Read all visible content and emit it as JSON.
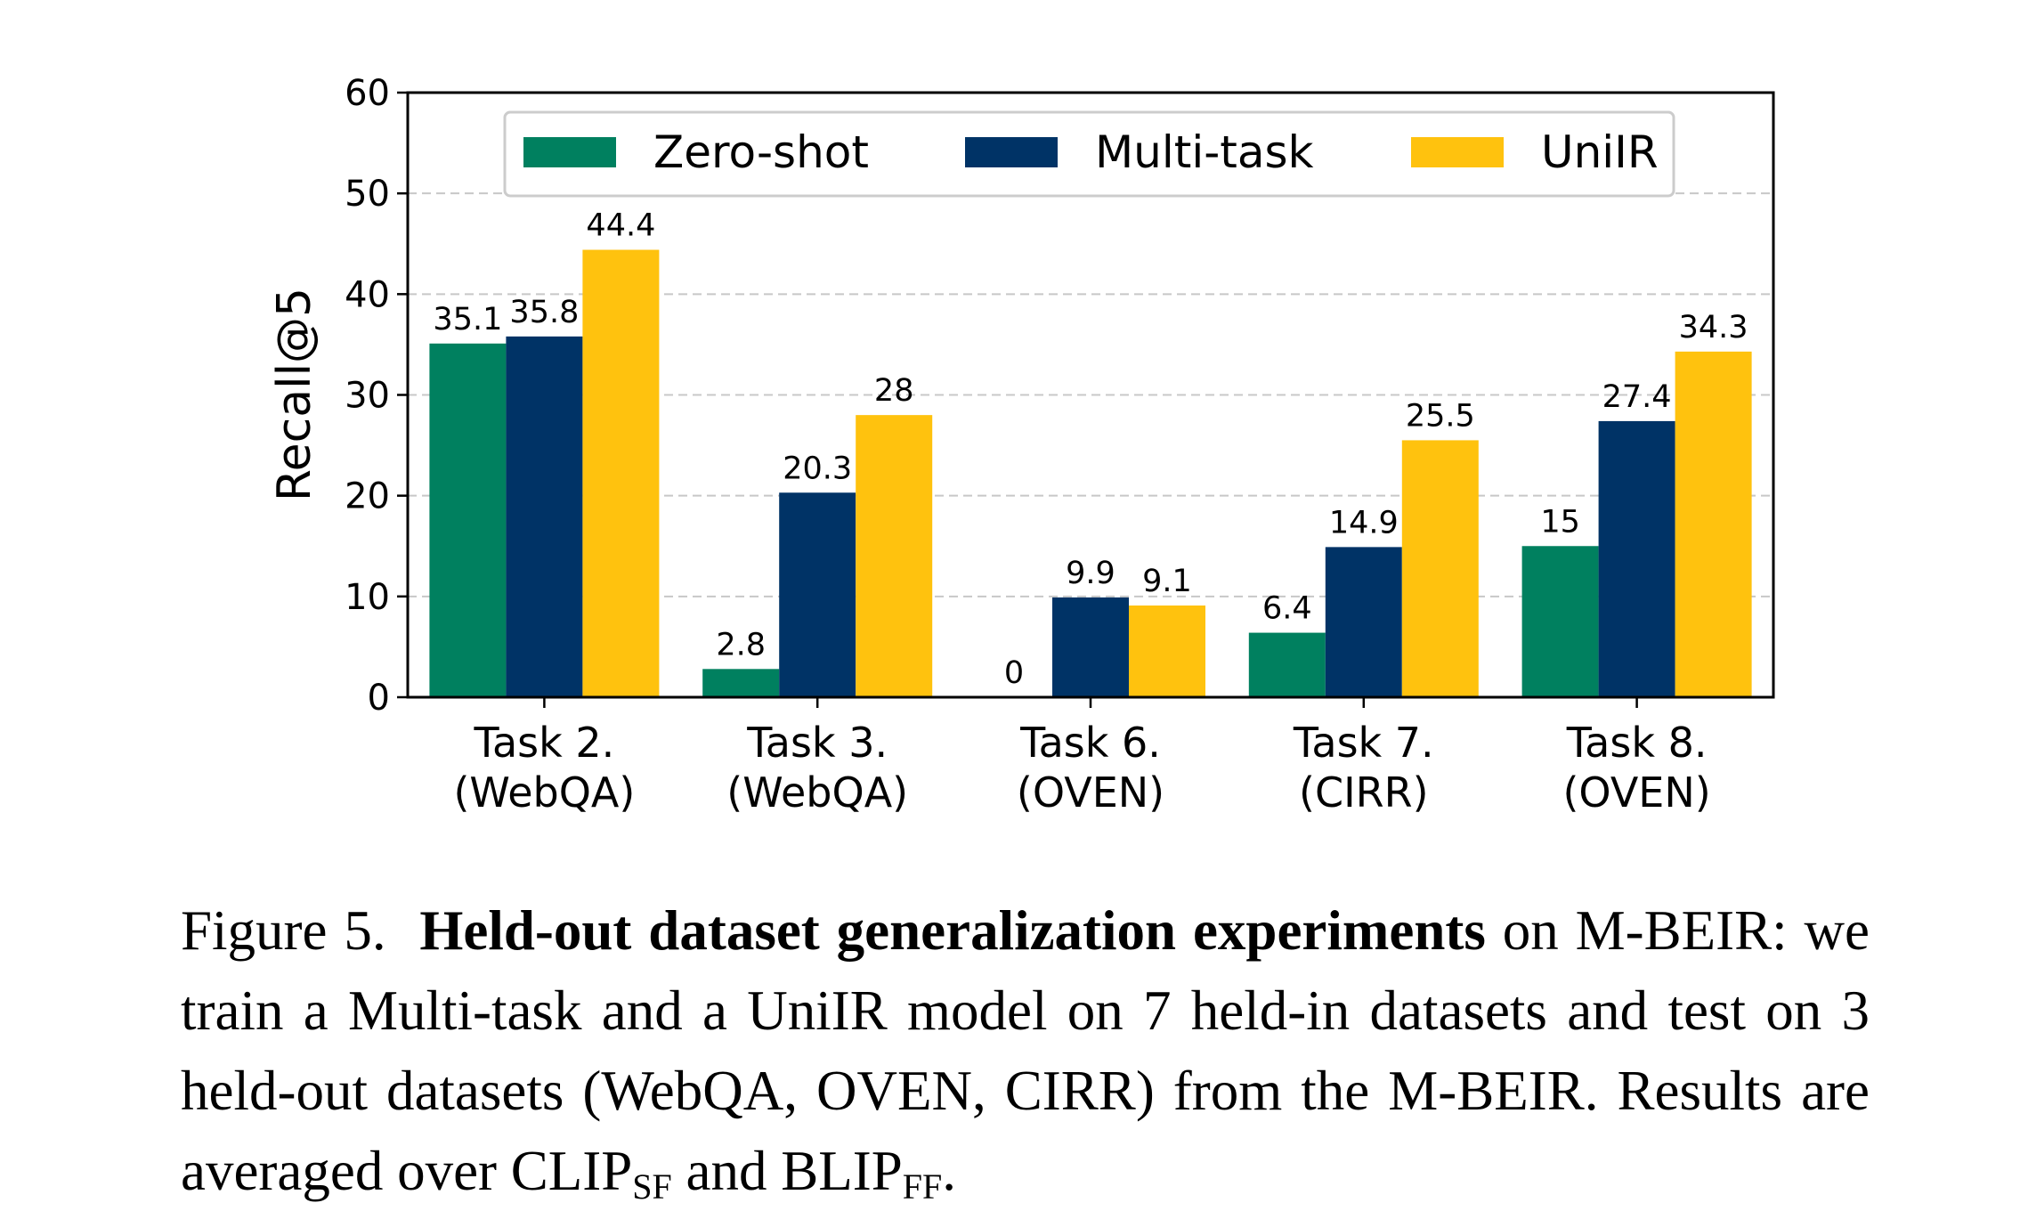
{
  "chart_data": {
    "type": "bar",
    "title": "",
    "xlabel": "",
    "ylabel": "Recall@5",
    "ylim": [
      0,
      60
    ],
    "yticks": [
      0,
      10,
      20,
      30,
      40,
      50,
      60
    ],
    "grid": "y, dashed",
    "legend_position": "top-center",
    "categories": [
      [
        "Task 2.",
        "(WebQA)"
      ],
      [
        "Task 3.",
        "(WebQA)"
      ],
      [
        "Task 6.",
        "(OVEN)"
      ],
      [
        "Task 7.",
        "(CIRR)"
      ],
      [
        "Task 8.",
        "(OVEN)"
      ]
    ],
    "series": [
      {
        "name": "Zero-shot",
        "color": "#00805f",
        "values": [
          35.1,
          2.8,
          0,
          6.4,
          15
        ]
      },
      {
        "name": "Multi-task",
        "color": "#003366",
        "values": [
          35.8,
          20.3,
          9.9,
          14.9,
          27.4
        ]
      },
      {
        "name": "UniIR",
        "color": "#ffc20e",
        "values": [
          44.4,
          28,
          9.1,
          25.5,
          34.3
        ]
      }
    ]
  },
  "caption": {
    "prefix": "Figure 5.",
    "bold": "Held-out dataset generalization experiments",
    "text1": " on M-BEIR: we train a Multi-task and a UniIR model on 7 held-in datasets and test on 3 held-out datasets (WebQA, OVEN, CIRR) from the M-BEIR. Results are averaged over CLIP",
    "sub1": "SF",
    "text2": " and BLIP",
    "sub2": "FF",
    "text3": "."
  }
}
